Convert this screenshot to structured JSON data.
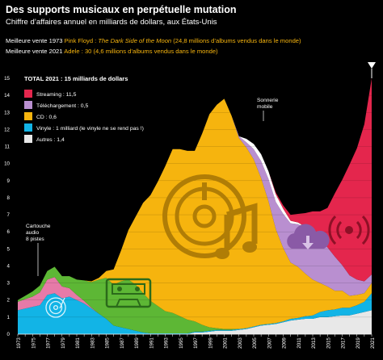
{
  "header": {
    "title": "Des supports musicaux en perpétuelle mutation",
    "subtitle": "Chiffre d’affaires annuel en milliards de dollars, aux États-Unis",
    "best1_prefix": "Meilleure vente 1973 ",
    "best1_artist": "Pink Floyd : ",
    "best1_album": "The Dark Side of the Moon",
    "best1_detail": " (24,8 millions d’albums vendus dans le monde)",
    "best2_prefix": "Meilleure vente 2021 ",
    "best2_detail": "Adele : 30 (4,6 millions d’albums vendus dans le monde)"
  },
  "colors": {
    "streaming": "#e4264d",
    "telechargement": "#b98fd0",
    "cd": "#f6b40e",
    "cassette": "#5db735",
    "vinyle": "#12b4e6",
    "autres": "#e8e8e8",
    "sonnerie": "#ffffff",
    "cartouche": "#e67aa8",
    "accent": "#f6b40e"
  },
  "legend": {
    "total": "TOTAL 2021 : 15 milliards de dollars",
    "items": [
      {
        "label": "Streaming : 11,5",
        "color": "#e4264d"
      },
      {
        "label": "Téléchargement : 0,5",
        "color": "#b98fd0"
      },
      {
        "label": "CD : 0,6",
        "color": "#f6b40e"
      },
      {
        "label": "Vinyle : 1 milliard (le vinyle ne se rend pas !)",
        "color": "#12b4e6"
      },
      {
        "label": "Autres : 1,4",
        "color": "#e8e8e8"
      }
    ]
  },
  "annotations": {
    "sonnerie": [
      "Sonnerie",
      "mobile"
    ],
    "cartouche": [
      "Cartouche",
      "audio",
      "8 pistes"
    ]
  },
  "icons": [
    "vinyl-record-icon",
    "cassette-icon",
    "cd-music-note-icon",
    "download-cloud-icon",
    "streaming-broadcast-icon"
  ],
  "chart_data": {
    "type": "area",
    "stacked": true,
    "ylim": [
      0,
      15
    ],
    "yticks": [
      0,
      1,
      2,
      3,
      4,
      5,
      6,
      7,
      8,
      9,
      10,
      11,
      12,
      13,
      14,
      15
    ],
    "x": [
      1973,
      1974,
      1975,
      1976,
      1977,
      1978,
      1979,
      1980,
      1981,
      1982,
      1983,
      1984,
      1985,
      1986,
      1987,
      1988,
      1989,
      1990,
      1991,
      1992,
      1993,
      1994,
      1995,
      1996,
      1997,
      1998,
      1999,
      2000,
      2001,
      2002,
      2003,
      2004,
      2005,
      2006,
      2007,
      2008,
      2009,
      2010,
      2011,
      2012,
      2013,
      2014,
      2015,
      2016,
      2017,
      2018,
      2019,
      2020,
      2021
    ],
    "xtick_labels": [
      "1973",
      "1975",
      "1977",
      "1979",
      "1981",
      "1983",
      "1985",
      "1987",
      "1989",
      "1991",
      "1993",
      "1995",
      "1997",
      "1999",
      "2001",
      "2003",
      "2005",
      "2007",
      "2009",
      "2011",
      "2013",
      "2015",
      "2017",
      "2019",
      "2021"
    ],
    "series": [
      {
        "name": "Autres",
        "values": [
          0,
          0,
          0,
          0,
          0,
          0,
          0,
          0,
          0,
          0,
          0,
          0,
          0,
          0,
          0,
          0,
          0,
          0,
          0,
          0,
          0,
          0,
          0,
          0,
          0.1,
          0.1,
          0.15,
          0.2,
          0.2,
          0.2,
          0.25,
          0.3,
          0.4,
          0.5,
          0.55,
          0.6,
          0.7,
          0.8,
          0.85,
          0.9,
          0.9,
          1.0,
          1.0,
          1.05,
          1.1,
          1.1,
          1.2,
          1.3,
          1.4
        ]
      },
      {
        "name": "Vinyle",
        "values": [
          1.4,
          1.5,
          1.6,
          1.7,
          2.3,
          2.4,
          2.1,
          2.2,
          2.0,
          1.8,
          1.5,
          1.2,
          0.9,
          0.5,
          0.4,
          0.3,
          0.2,
          0.1,
          0.05,
          0.05,
          0.05,
          0.05,
          0.05,
          0.05,
          0.05,
          0.05,
          0.05,
          0.05,
          0.05,
          0.05,
          0.05,
          0.05,
          0.05,
          0.05,
          0.05,
          0.05,
          0.05,
          0.1,
          0.1,
          0.15,
          0.2,
          0.3,
          0.4,
          0.4,
          0.45,
          0.45,
          0.5,
          0.6,
          1.0
        ]
      },
      {
        "name": "Cartouche audio 8 pistes",
        "values": [
          0.5,
          0.55,
          0.6,
          0.75,
          0.9,
          0.95,
          0.7,
          0.5,
          0.3,
          0.15,
          0.05,
          0,
          0,
          0,
          0,
          0,
          0,
          0,
          0,
          0,
          0,
          0,
          0,
          0,
          0,
          0,
          0,
          0,
          0,
          0,
          0,
          0,
          0,
          0,
          0,
          0,
          0,
          0,
          0,
          0,
          0,
          0,
          0,
          0,
          0,
          0,
          0,
          0,
          0
        ]
      },
      {
        "name": "Cassette",
        "values": [
          0.1,
          0.2,
          0.3,
          0.4,
          0.5,
          0.6,
          0.6,
          0.7,
          0.9,
          1.2,
          1.5,
          2.0,
          2.4,
          2.4,
          2.7,
          2.9,
          2.7,
          2.3,
          1.9,
          1.6,
          1.3,
          1.2,
          1.0,
          0.8,
          0.6,
          0.4,
          0.2,
          0.1,
          0.05,
          0.05,
          0,
          0,
          0,
          0,
          0,
          0,
          0,
          0,
          0,
          0,
          0,
          0,
          0,
          0,
          0,
          0,
          0,
          0,
          0
        ]
      },
      {
        "name": "CD",
        "values": [
          0,
          0,
          0,
          0,
          0,
          0,
          0,
          0,
          0,
          0,
          0.05,
          0.1,
          0.4,
          0.9,
          1.8,
          2.9,
          4.0,
          5.3,
          6.2,
          7.3,
          8.5,
          9.6,
          9.8,
          9.9,
          10.0,
          11.2,
          12.5,
          13.1,
          13.5,
          12.5,
          11.2,
          10.6,
          9.8,
          8.6,
          7.2,
          5.5,
          4.3,
          3.3,
          3.0,
          2.5,
          2.1,
          1.7,
          1.4,
          1.1,
          1.0,
          0.7,
          0.6,
          0.5,
          0.6
        ]
      },
      {
        "name": "Téléchargement",
        "values": [
          0,
          0,
          0,
          0,
          0,
          0,
          0,
          0,
          0,
          0,
          0,
          0,
          0,
          0,
          0,
          0,
          0,
          0,
          0,
          0,
          0,
          0,
          0,
          0,
          0,
          0,
          0,
          0,
          0,
          0,
          0.1,
          0.3,
          0.6,
          1.0,
          1.3,
          1.6,
          2.0,
          2.3,
          2.5,
          2.7,
          2.8,
          2.5,
          2.3,
          2.0,
          1.5,
          1.2,
          0.9,
          0.7,
          0.5
        ]
      },
      {
        "name": "Sonnerie mobile",
        "values": [
          0,
          0,
          0,
          0,
          0,
          0,
          0,
          0,
          0,
          0,
          0,
          0,
          0,
          0,
          0,
          0,
          0,
          0,
          0,
          0,
          0,
          0,
          0,
          0,
          0,
          0,
          0,
          0,
          0,
          0,
          0,
          0.2,
          0.3,
          0.4,
          0.45,
          0.45,
          0.3,
          0.15,
          0.1,
          0.05,
          0,
          0,
          0,
          0,
          0,
          0,
          0,
          0,
          0
        ]
      },
      {
        "name": "Streaming",
        "values": [
          0,
          0,
          0,
          0,
          0,
          0,
          0,
          0,
          0,
          0,
          0,
          0,
          0,
          0,
          0,
          0,
          0,
          0,
          0,
          0,
          0,
          0,
          0,
          0,
          0,
          0,
          0,
          0,
          0,
          0,
          0,
          0,
          0,
          0,
          0,
          0.1,
          0.2,
          0.35,
          0.5,
          0.8,
          1.2,
          1.7,
          2.3,
          3.7,
          5.0,
          6.5,
          7.7,
          9.2,
          11.5
        ]
      }
    ]
  }
}
